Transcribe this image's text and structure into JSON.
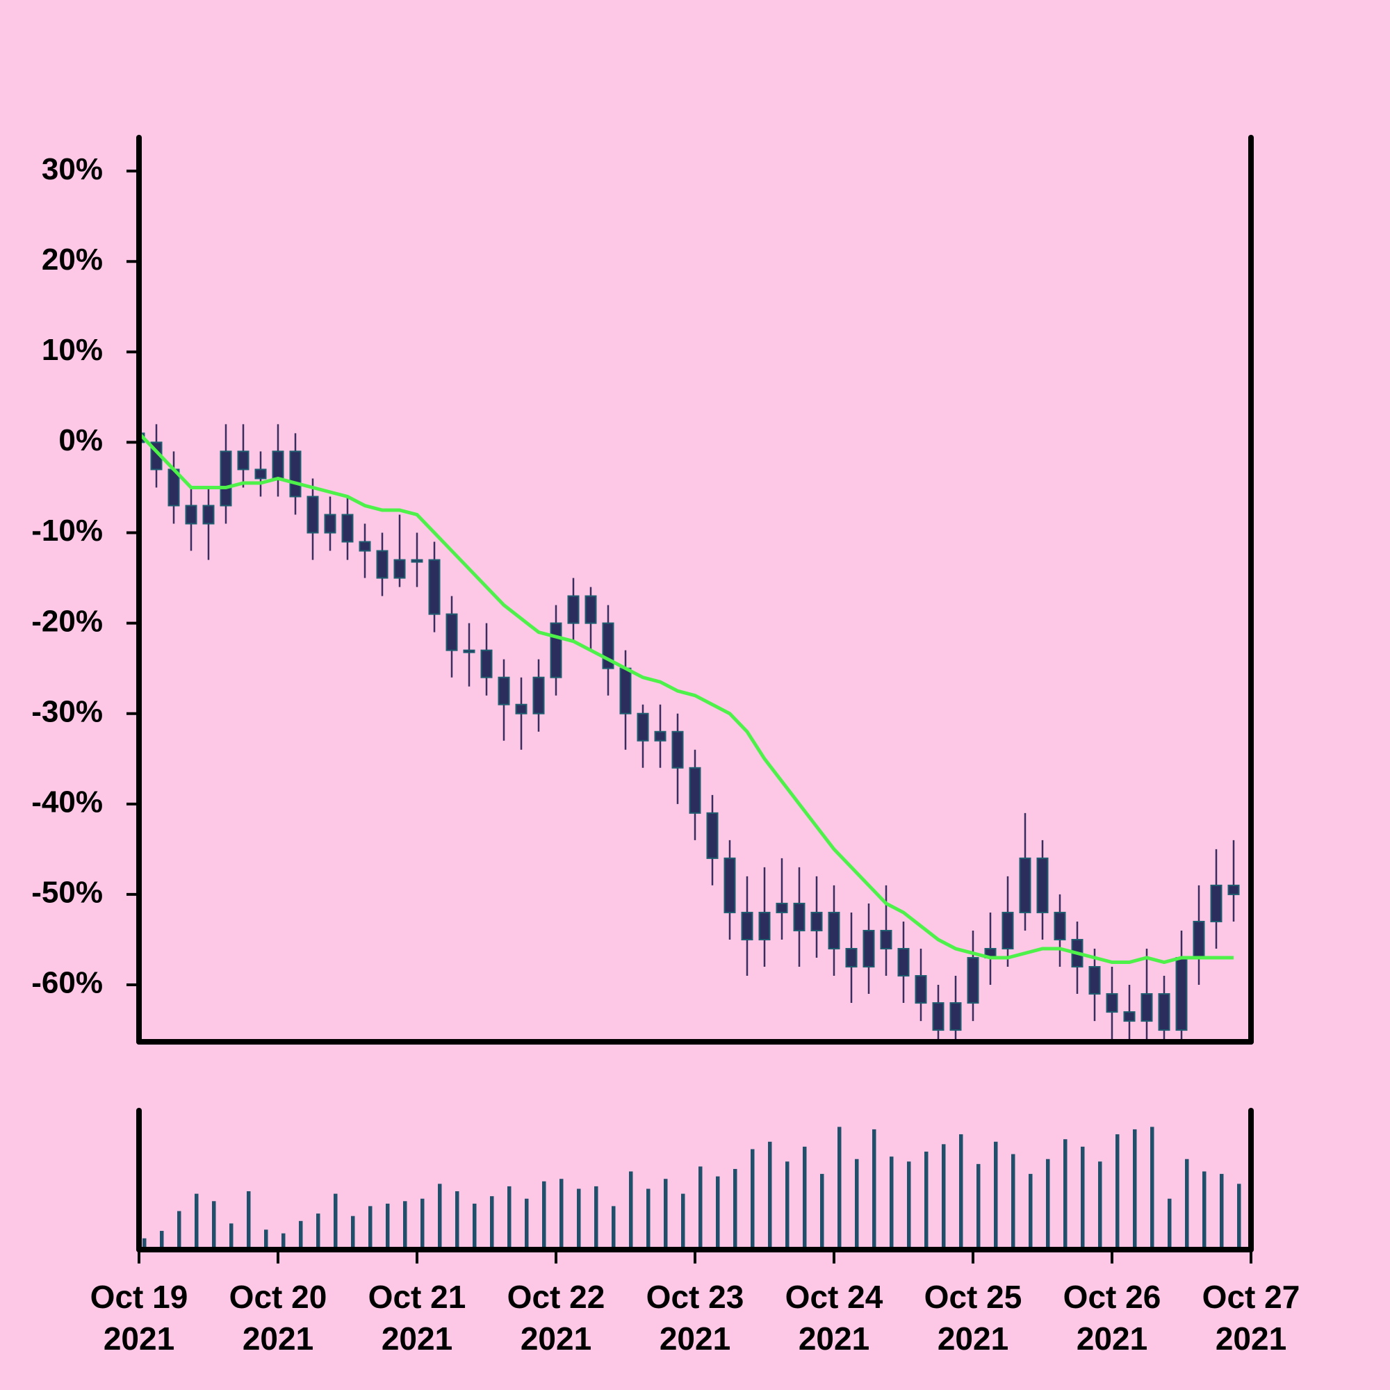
{
  "chart_data": [
    {
      "type": "candlestick",
      "x": [
        0,
        0.125,
        0.25,
        0.375,
        0.5,
        0.625,
        0.75,
        0.875,
        1,
        1.125,
        1.25,
        1.375,
        1.5,
        1.625,
        1.75,
        1.875,
        2,
        2.125,
        2.25,
        2.375,
        2.5,
        2.625,
        2.75,
        2.875,
        3,
        3.125,
        3.25,
        3.375,
        3.5,
        3.625,
        3.75,
        3.875,
        4,
        4.125,
        4.25,
        4.375,
        4.5,
        4.625,
        4.75,
        4.875,
        5,
        5.125,
        5.25,
        5.375,
        5.5,
        5.625,
        5.75,
        5.875,
        6,
        6.125,
        6.25,
        6.375,
        6.5,
        6.625,
        6.75,
        6.875,
        7,
        7.125,
        7.25,
        7.375,
        7.5,
        7.625,
        7.75,
        7.875
      ],
      "open": [
        1,
        0,
        -3,
        -7,
        -9,
        -7,
        -1,
        -3,
        -4,
        -1,
        -6,
        -10,
        -8,
        -11,
        -12,
        -15,
        -13,
        -13,
        -19,
        -23,
        -23,
        -26,
        -29,
        -30,
        -26,
        -20,
        -17,
        -20,
        -25,
        -30,
        -33,
        -32,
        -36,
        -41,
        -46,
        -52,
        -55,
        -52,
        -51,
        -54,
        -52,
        -56,
        -58,
        -54,
        -56,
        -59,
        -62,
        -65,
        -62,
        -57,
        -56,
        -52,
        -46,
        -52,
        -55,
        -58,
        -61,
        -63,
        -64,
        -61,
        -65,
        -57,
        -53,
        -49
      ],
      "high": [
        3,
        2,
        -1,
        -5,
        -5,
        2,
        2,
        -1,
        2,
        1,
        -4,
        -6,
        -6,
        -9,
        -10,
        -8,
        -10,
        -11,
        -17,
        -20,
        -20,
        -24,
        -26,
        -24,
        -18,
        -15,
        -16,
        -18,
        -23,
        -29,
        -29,
        -30,
        -34,
        -39,
        -44,
        -48,
        -47,
        -46,
        -47,
        -48,
        -49,
        -52,
        -51,
        -49,
        -53,
        -56,
        -60,
        -59,
        -54,
        -52,
        -48,
        -41,
        -44,
        -50,
        -53,
        -56,
        -58,
        -60,
        -56,
        -59,
        -54,
        -49,
        -45,
        -44
      ],
      "low": [
        -2,
        -5,
        -9,
        -12,
        -13,
        -9,
        -5,
        -6,
        -6,
        -8,
        -13,
        -12,
        -13,
        -15,
        -17,
        -16,
        -16,
        -21,
        -26,
        -27,
        -28,
        -33,
        -34,
        -32,
        -28,
        -22,
        -23,
        -28,
        -34,
        -36,
        -36,
        -40,
        -44,
        -49,
        -55,
        -59,
        -58,
        -55,
        -58,
        -57,
        -59,
        -62,
        -61,
        -59,
        -62,
        -64,
        -66,
        -66,
        -64,
        -60,
        -58,
        -54,
        -55,
        -58,
        -61,
        -64,
        -66,
        -66,
        -66,
        -66,
        -66,
        -60,
        -56,
        -53
      ],
      "close": [
        0,
        -3,
        -7,
        -9,
        -7,
        -1,
        -3,
        -4,
        -1,
        -6,
        -10,
        -8,
        -11,
        -12,
        -15,
        -13,
        -13,
        -19,
        -23,
        -23,
        -26,
        -29,
        -30,
        -26,
        -20,
        -17,
        -20,
        -25,
        -30,
        -33,
        -32,
        -36,
        -41,
        -46,
        -52,
        -55,
        -52,
        -51,
        -54,
        -52,
        -56,
        -58,
        -54,
        -56,
        -59,
        -62,
        -65,
        -62,
        -57,
        -56,
        -52,
        -46,
        -52,
        -55,
        -58,
        -61,
        -63,
        -64,
        -61,
        -65,
        -57,
        -53,
        -49,
        -50
      ],
      "ma": {
        "color": "#4ef04a",
        "values": [
          1,
          -1,
          -3,
          -5,
          -5,
          -5,
          -4.5,
          -4.5,
          -4,
          -4.5,
          -5,
          -5.5,
          -6,
          -7,
          -7.5,
          -7.5,
          -8,
          -10,
          -12,
          -14,
          -16,
          -18,
          -19.5,
          -21,
          -21.5,
          -22,
          -23,
          -24,
          -25,
          -26,
          -26.5,
          -27.5,
          -28,
          -29,
          -30,
          -32,
          -35,
          -37.5,
          -40,
          -42.5,
          -45,
          -47,
          -49,
          -51,
          -52,
          -53.5,
          -55,
          -56,
          -56.5,
          -57,
          -57,
          -56.5,
          -56,
          -56,
          -56.5,
          -57,
          -57.5,
          -57.5,
          -57,
          -57.5,
          -57,
          -57,
          -57,
          -57
        ]
      },
      "body_color": "#2b2d5c",
      "edge_color": "#1f5d70",
      "wick_color": "#3b2c60",
      "xlim": [
        0,
        8
      ],
      "ylim": [
        -66.3,
        33.7
      ],
      "yticks": [
        {
          "value": -60,
          "label": "-60%"
        },
        {
          "value": -50,
          "label": "-50%"
        },
        {
          "value": -40,
          "label": "-40%"
        },
        {
          "value": -30,
          "label": "-30%"
        },
        {
          "value": -20,
          "label": "-20%"
        },
        {
          "value": -10,
          "label": "-10%"
        },
        {
          "value": 0,
          "label": "0%"
        },
        {
          "value": 10,
          "label": "10%"
        },
        {
          "value": 20,
          "label": "20%"
        },
        {
          "value": 30,
          "label": "30%"
        }
      ]
    },
    {
      "type": "bar",
      "values": [
        8,
        14,
        30,
        44,
        38,
        20,
        46,
        15,
        12,
        22,
        28,
        44,
        26,
        34,
        36,
        38,
        40,
        52,
        46,
        36,
        42,
        50,
        40,
        54,
        56,
        48,
        50,
        34,
        62,
        48,
        56,
        44,
        66,
        58,
        64,
        80,
        86,
        70,
        82,
        60,
        98,
        72,
        96,
        74,
        70,
        78,
        84,
        92,
        68,
        86,
        76,
        60,
        72,
        88,
        82,
        70,
        92,
        96,
        98,
        40,
        72,
        62,
        60,
        52
      ],
      "color": "#1f4f6a",
      "ylim": [
        0,
        110
      ],
      "xticks": [
        {
          "value": 0,
          "label": "Oct 19\n2021"
        },
        {
          "value": 1,
          "label": "Oct 20\n2021"
        },
        {
          "value": 2,
          "label": "Oct 21\n2021"
        },
        {
          "value": 3,
          "label": "Oct 22\n2021"
        },
        {
          "value": 4,
          "label": "Oct 23\n2021"
        },
        {
          "value": 5,
          "label": "Oct 24\n2021"
        },
        {
          "value": 6,
          "label": "Oct 25\n2021"
        },
        {
          "value": 7,
          "label": "Oct 26\n2021"
        },
        {
          "value": 8,
          "label": "Oct 27\n2021"
        }
      ]
    }
  ]
}
